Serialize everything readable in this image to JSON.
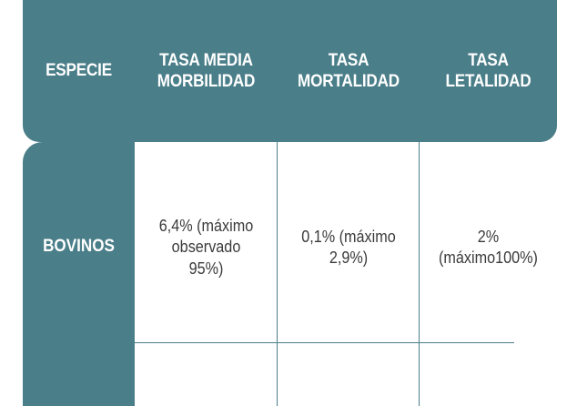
{
  "colors": {
    "header_bg": "#4a7e89",
    "header_text": "#ffffff",
    "body_text": "#3b3b3b",
    "grid_line": "#4a7e89"
  },
  "headers": {
    "species": "ESPECIE",
    "morbidity_line1": "TASA MEDIA",
    "morbidity_line2": "MORBILIDAD",
    "mortality_line1": "TASA",
    "mortality_line2": "MORTALIDAD",
    "lethality_line1": "TASA",
    "lethality_line2": "LETALIDAD"
  },
  "rows": [
    {
      "species": "BOVINOS",
      "morbidity_line1": "6,4% (máximo",
      "morbidity_line2": "observado",
      "morbidity_line3": "95%)",
      "mortality_line1": "0,1% (máximo",
      "mortality_line2": "2,9%)",
      "lethality_line1": "2%",
      "lethality_line2": "(máximo100%)"
    }
  ]
}
